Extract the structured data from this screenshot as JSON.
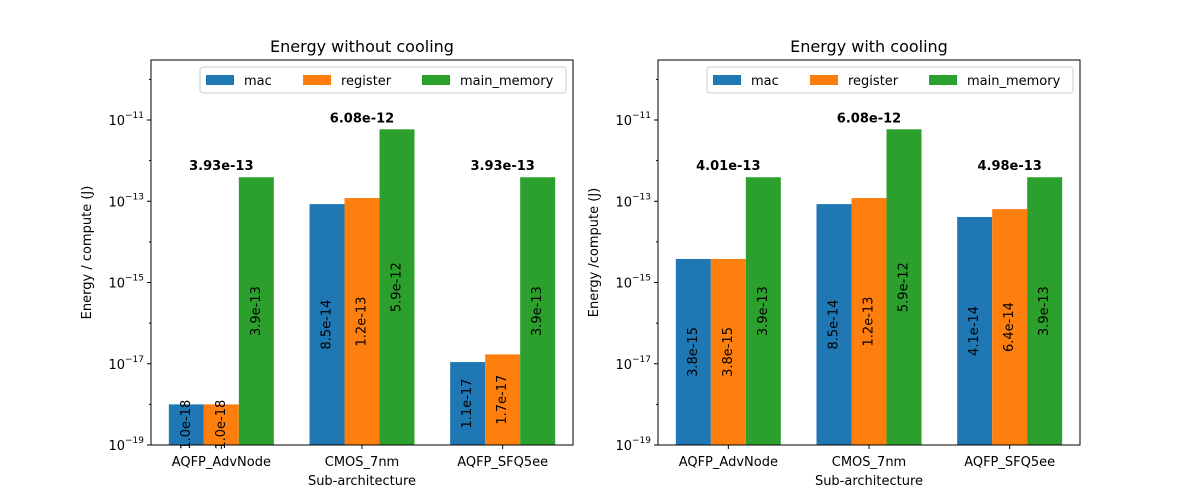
{
  "chart_data": [
    {
      "type": "bar",
      "title": "Energy without cooling",
      "xlabel": "Sub-architecture",
      "ylabel": "Energy / compute (J)",
      "yscale": "log",
      "ylim": [
        1e-19,
        3e-10
      ],
      "yticks": [
        1e-19,
        1e-17,
        1e-15,
        1e-13,
        1e-11
      ],
      "ytick_labels": [
        {
          "base": "10",
          "exp": "−19"
        },
        {
          "base": "10",
          "exp": "−17"
        },
        {
          "base": "10",
          "exp": "−15"
        },
        {
          "base": "10",
          "exp": "−13"
        },
        {
          "base": "10",
          "exp": "−11"
        }
      ],
      "legend": "top-right",
      "categories": [
        "AQFP_AdvNode",
        "CMOS_7nm",
        "AQFP_SFQ5ee"
      ],
      "series": [
        {
          "name": "mac",
          "color": "#1f77b4",
          "values": [
            1e-18,
            8.5e-14,
            1.1e-17
          ],
          "labels": [
            "1.0e-18",
            "8.5e-14",
            "1.1e-17"
          ]
        },
        {
          "name": "register",
          "color": "#ff7f0e",
          "values": [
            1e-18,
            1.2e-13,
            1.7e-17
          ],
          "labels": [
            "1.0e-18",
            "1.2e-13",
            "1.7e-17"
          ]
        },
        {
          "name": "main_memory",
          "color": "#2ca02c",
          "values": [
            3.9e-13,
            5.9e-12,
            3.9e-13
          ],
          "labels": [
            "3.9e-13",
            "5.9e-12",
            "3.9e-13"
          ]
        }
      ],
      "totals": [
        3.93e-13,
        6.08e-12,
        3.93e-13
      ],
      "total_labels": [
        "3.93e-13",
        "6.08e-12",
        "3.93e-13"
      ]
    },
    {
      "type": "bar",
      "title": "Energy with cooling",
      "xlabel": "Sub-architecture",
      "ylabel": "Energy /compute (J)",
      "yscale": "log",
      "ylim": [
        1e-19,
        3e-10
      ],
      "yticks": [
        1e-19,
        1e-17,
        1e-15,
        1e-13,
        1e-11
      ],
      "ytick_labels": [
        {
          "base": "10",
          "exp": "−19"
        },
        {
          "base": "10",
          "exp": "−17"
        },
        {
          "base": "10",
          "exp": "−15"
        },
        {
          "base": "10",
          "exp": "−13"
        },
        {
          "base": "10",
          "exp": "−11"
        }
      ],
      "legend": "top-right",
      "categories": [
        "AQFP_AdvNode",
        "CMOS_7nm",
        "AQFP_SFQ5ee"
      ],
      "series": [
        {
          "name": "mac",
          "color": "#1f77b4",
          "values": [
            3.8e-15,
            8.5e-14,
            4.1e-14
          ],
          "labels": [
            "3.8e-15",
            "8.5e-14",
            "4.1e-14"
          ]
        },
        {
          "name": "register",
          "color": "#ff7f0e",
          "values": [
            3.8e-15,
            1.2e-13,
            6.4e-14
          ],
          "labels": [
            "3.8e-15",
            "1.2e-13",
            "6.4e-14"
          ]
        },
        {
          "name": "main_memory",
          "color": "#2ca02c",
          "values": [
            3.9e-13,
            5.9e-12,
            3.9e-13
          ],
          "labels": [
            "3.9e-13",
            "5.9e-12",
            "3.9e-13"
          ]
        }
      ],
      "totals": [
        4.01e-13,
        6.08e-12,
        4.98e-13
      ],
      "total_labels": [
        "4.01e-13",
        "6.08e-12",
        "4.98e-13"
      ]
    }
  ]
}
